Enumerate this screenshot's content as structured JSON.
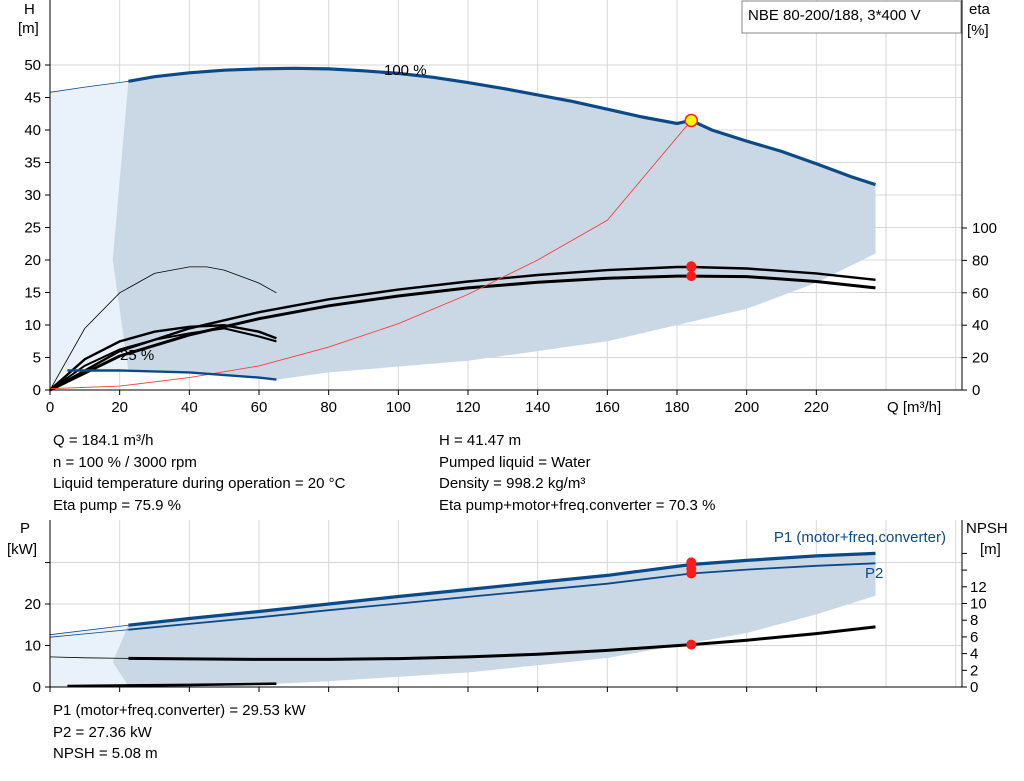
{
  "title_box": "NBE 80-200/188, 3*400 V",
  "info_left": [
    "Q = 184.1 m³/h",
    "n = 100 % / 3000 rpm",
    "Liquid temperature during operation = 20 °C",
    "Eta pump = 75.9 %"
  ],
  "info_right": [
    "H = 41.47 m",
    "Pumped liquid = Water",
    "Density = 998.2 kg/m³",
    "Eta pump+motor+freq.converter = 70.3 %"
  ],
  "info_bottom": [
    "P1 (motor+freq.converter) = 29.53 kW",
    "P2 = 27.36 kW",
    "NPSH = 5.08 m"
  ],
  "colors": {
    "envelope": "#cad8e6",
    "envelope_light": "#e9f1fa",
    "curve_blue": "#0c4a87",
    "curve_black": "#000000",
    "system_curve": "#ff3b3b",
    "grid": "#d7d7d7",
    "marker_red": "#ff1a1a",
    "marker_yellow": "#ffff00"
  },
  "chart_data": [
    {
      "type": "line",
      "xlabel": "Q [m³/h]",
      "ylabel": "H\n[m]",
      "y2label": "eta\n[%]",
      "xlim": [
        0,
        240
      ],
      "ylim": [
        0,
        55
      ],
      "y2lim": [
        0,
        164
      ],
      "x_ticks": [
        0,
        20,
        40,
        60,
        80,
        100,
        120,
        140,
        160,
        180,
        200,
        220
      ],
      "y_ticks": [
        0,
        5,
        10,
        15,
        20,
        25,
        30,
        35,
        40,
        45,
        50
      ],
      "y2_ticks": [
        0,
        20,
        40,
        60,
        80,
        100
      ],
      "annotations": [
        "100 %",
        "25 %"
      ],
      "series": [
        {
          "axis": "H",
          "role": "head_100",
          "x": [
            22.5,
            30,
            40,
            50,
            60,
            70,
            80,
            90,
            100,
            110,
            120,
            130,
            140,
            150,
            160,
            170,
            180,
            184.1,
            190,
            200,
            210,
            220,
            230,
            237
          ],
          "y": [
            47.5,
            48.2,
            48.8,
            49.2,
            49.4,
            49.5,
            49.4,
            49.1,
            48.7,
            48.1,
            47.3,
            46.4,
            45.4,
            44.4,
            43.2,
            42.0,
            41.0,
            41.47,
            40.0,
            38.3,
            36.7,
            34.8,
            32.8,
            31.6
          ]
        },
        {
          "axis": "H",
          "role": "head_100_extension",
          "x": [
            0,
            10,
            22.5
          ],
          "y": [
            45.8,
            46.6,
            47.5
          ]
        },
        {
          "axis": "H",
          "role": "head_25",
          "x": [
            5,
            20,
            40,
            60,
            65
          ],
          "y": [
            3.0,
            3.0,
            2.7,
            1.9,
            1.6
          ]
        },
        {
          "axis": "H",
          "role": "system_curve",
          "x": [
            0,
            20,
            40,
            60,
            80,
            100,
            120,
            140,
            160,
            184.1
          ],
          "y": [
            0.2,
            0.6,
            1.9,
            3.7,
            6.6,
            10.2,
            14.7,
            20.0,
            26.1,
            41.47
          ]
        },
        {
          "axis": "eta",
          "role": "eta_pump_100",
          "x": [
            0,
            20,
            40,
            60,
            80,
            100,
            120,
            140,
            160,
            180,
            184.1,
            200,
            220,
            237
          ],
          "y": [
            0,
            24,
            38,
            48,
            56,
            62,
            67,
            71,
            74,
            75.9,
            75.9,
            75,
            72,
            68
          ]
        },
        {
          "axis": "eta",
          "role": "eta_total_100",
          "x": [
            0,
            20,
            40,
            60,
            80,
            100,
            120,
            140,
            160,
            180,
            184.1,
            200,
            220,
            237
          ],
          "y": [
            0,
            21,
            34,
            44,
            52,
            58,
            63,
            66.5,
            69,
            70.3,
            70.3,
            70,
            67,
            63
          ]
        },
        {
          "axis": "eta",
          "role": "eta_pump_25",
          "x": [
            0,
            10,
            20,
            30,
            40,
            50,
            60,
            65
          ],
          "y": [
            0,
            19,
            30,
            36,
            39,
            40,
            36,
            32
          ]
        },
        {
          "axis": "eta",
          "role": "eta_total_25",
          "x": [
            0,
            10,
            20,
            30,
            40,
            50,
            60,
            65
          ],
          "y": [
            0,
            15,
            25,
            31,
            35,
            38,
            33,
            30
          ]
        },
        {
          "axis": "eta",
          "role": "eta_thin_arc",
          "x": [
            0,
            10,
            20,
            30,
            40,
            45,
            50,
            60,
            65
          ],
          "y": [
            0,
            38,
            60,
            72,
            76,
            76,
            74,
            66,
            60
          ]
        }
      ],
      "operating_point": {
        "x": 184.1,
        "H": 41.47,
        "eta_pump": 75.9,
        "eta_total": 70.3
      }
    },
    {
      "type": "line",
      "xlabel": "",
      "ylabel": "P\n[kW]",
      "y2label": "NPSH\n[m]",
      "xlim": [
        0,
        240
      ],
      "ylim": [
        0,
        35
      ],
      "y2lim": [
        0,
        18
      ],
      "y_ticks": [
        0,
        10,
        20
      ],
      "y2_ticks": [
        0,
        2,
        4,
        6,
        8,
        10,
        12
      ],
      "series_labels": [
        "P1 (motor+freq.converter)",
        "P2"
      ],
      "series": [
        {
          "axis": "P",
          "role": "P1",
          "x": [
            22.5,
            40,
            60,
            80,
            100,
            120,
            140,
            160,
            184.1,
            200,
            220,
            237
          ],
          "y": [
            14.9,
            16.5,
            18.2,
            20.0,
            21.8,
            23.5,
            25.2,
            26.9,
            29.53,
            30.5,
            31.6,
            32.2
          ]
        },
        {
          "axis": "P",
          "role": "P2",
          "x": [
            22.5,
            40,
            60,
            80,
            100,
            120,
            140,
            160,
            184.1,
            200,
            220,
            237
          ],
          "y": [
            13.8,
            15.2,
            16.8,
            18.5,
            20.1,
            21.7,
            23.3,
            24.9,
            27.36,
            28.3,
            29.2,
            29.8
          ]
        },
        {
          "axis": "P",
          "role": "P_extension",
          "x": [
            0,
            22.5
          ],
          "y": [
            12.6,
            14.9
          ]
        },
        {
          "axis": "P",
          "role": "P_25",
          "x": [
            5,
            40,
            65
          ],
          "y": [
            0.25,
            0.5,
            0.8
          ]
        },
        {
          "axis": "NPSH",
          "role": "NPSH",
          "x": [
            22.5,
            40,
            60,
            80,
            100,
            120,
            140,
            160,
            184.1,
            200,
            220,
            237
          ],
          "y": [
            3.43,
            3.36,
            3.3,
            3.3,
            3.4,
            3.6,
            3.92,
            4.38,
            5.08,
            5.6,
            6.4,
            7.2
          ]
        },
        {
          "axis": "NPSH",
          "role": "NPSH_extension",
          "x": [
            0,
            10,
            22.5
          ],
          "y": [
            3.6,
            3.5,
            3.43
          ]
        }
      ],
      "operating_point": {
        "x": 184.1,
        "P1": 29.53,
        "P2": 27.36,
        "NPSH": 5.08
      }
    }
  ]
}
